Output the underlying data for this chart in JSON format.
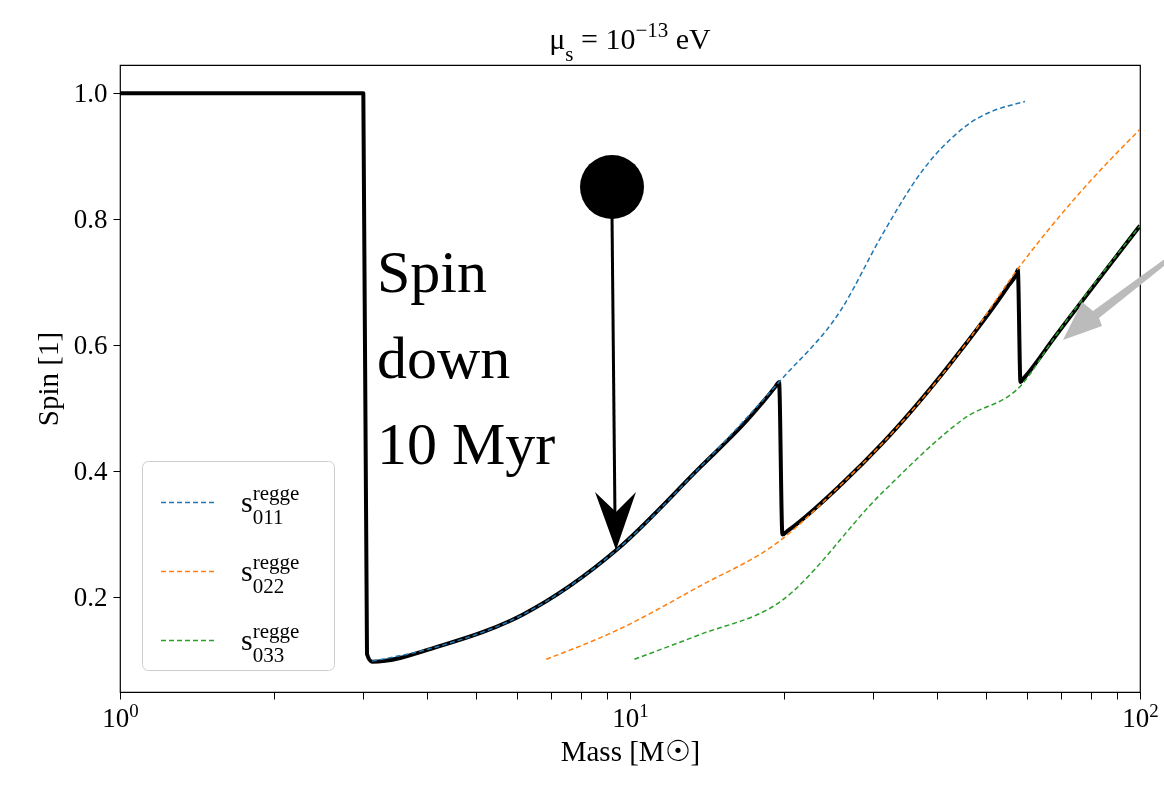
{
  "chart_data": {
    "type": "line",
    "title": "μ$_{s}$ = 10$^{−13}$ eV",
    "xlabel": "Mass [M☉]",
    "ylabel": "Spin [1]",
    "log": "x",
    "xlim": [
      1,
      100
    ],
    "ylim": [
      0.05,
      1.045
    ],
    "xticks": [
      {
        "value": 1,
        "label": "10$^{0}$"
      },
      {
        "value": 2,
        "label": null
      },
      {
        "value": 3,
        "label": null
      },
      {
        "value": 4,
        "label": null
      },
      {
        "value": 5,
        "label": null
      },
      {
        "value": 6,
        "label": null
      },
      {
        "value": 7,
        "label": null
      },
      {
        "value": 8,
        "label": null
      },
      {
        "value": 9,
        "label": null
      },
      {
        "value": 10,
        "label": "10$^{1}$"
      },
      {
        "value": 20,
        "label": null
      },
      {
        "value": 30,
        "label": null
      },
      {
        "value": 40,
        "label": null
      },
      {
        "value": 50,
        "label": null
      },
      {
        "value": 60,
        "label": null
      },
      {
        "value": 70,
        "label": null
      },
      {
        "value": 80,
        "label": null
      },
      {
        "value": 90,
        "label": null
      },
      {
        "value": 100,
        "label": "10$^{2}$"
      }
    ],
    "yticks": [
      0.2,
      0.4,
      0.6,
      0.8,
      {
        "value": 1,
        "label": "1.0"
      }
    ],
    "grid": false,
    "legend": "bottom left",
    "marker": "none",
    "annotations": [
      "Spin\ndown\n10 Myr"
    ],
    "series": [
      {
        "color": "#000000",
        "line_style": "solid",
        "x": [
          1,
          3.0,
          3.05,
          3.12,
          4.28,
          6.17,
          9.43,
          13.7,
          17.0,
          19.3,
          19.6,
          19.9,
          20.4,
          26,
          31.2,
          45.2,
          55.0,
          57.3,
          57.6,
          58.3,
          59.2,
          68,
          100
        ],
        "values": [
          1,
          1,
          0.11,
          0.098,
          0.124,
          0.173,
          0.276,
          0.406,
          0.482,
          0.535,
          0.542,
          0.3,
          0.306,
          0.38,
          0.444,
          0.599,
          0.693,
          0.715,
          0.72,
          0.542,
          0.548,
          0.613,
          0.79
        ]
      },
      {
        "name": "s$^{regge}$$_{011}$",
        "color": "#1f77b4",
        "line_style": "dashed",
        "x": [
          3.12,
          4.28,
          6.17,
          9.43,
          13.7,
          19.6,
          26,
          31.2,
          37.5,
          45.2,
          59.5
        ],
        "values": [
          0.099,
          0.124,
          0.173,
          0.276,
          0.406,
          0.542,
          0.658,
          0.775,
          0.878,
          0.946,
          0.987
        ]
      },
      {
        "name": "s$^{regge}$$_{022}$",
        "color": "#ff7f0e",
        "line_style": "dashed",
        "x": [
          6.85,
          9.43,
          13.7,
          19.6,
          26,
          31.2,
          45.2,
          57.8,
          75.4,
          100
        ],
        "values": [
          0.102,
          0.148,
          0.218,
          0.289,
          0.38,
          0.444,
          0.599,
          0.723,
          0.838,
          0.943
        ]
      },
      {
        "name": "s$^{regge}$$_{033}$",
        "color": "#2ca02c",
        "line_style": "dashed",
        "x": [
          10.2,
          13.7,
          19.6,
          31.2,
          45.2,
          58.8,
          68,
          100
        ],
        "values": [
          0.102,
          0.141,
          0.192,
          0.366,
          0.484,
          0.539,
          0.613,
          0.79
        ]
      }
    ]
  }
}
